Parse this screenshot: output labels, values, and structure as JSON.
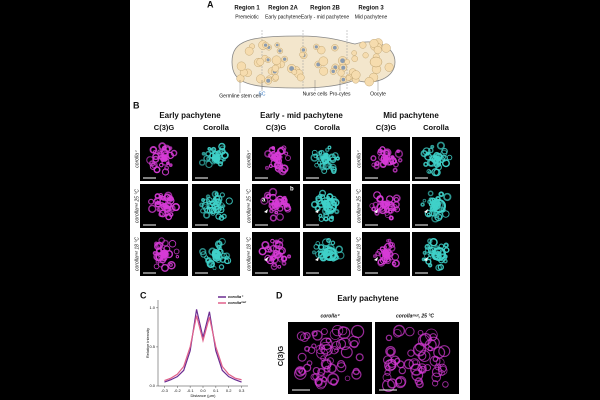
{
  "panel_labels": [
    "A",
    "B",
    "C",
    "D"
  ],
  "panel_a": {
    "regions": [
      {
        "name": "Region 1",
        "stage": "Premeiotic"
      },
      {
        "name": "Region 2A",
        "stage": "Early pachytene"
      },
      {
        "name": "Region 2B",
        "stage": "Early - mid pachytene"
      },
      {
        "name": "Region 3",
        "stage": "Mid pachytene"
      }
    ],
    "labels": [
      "Germline stem cell",
      "SC",
      "Nurse cells",
      "Pro-cytes",
      "Oocyte"
    ]
  },
  "panel_b": {
    "stages": [
      "Early pachytene",
      "Early - mid pachytene",
      "Mid pachytene"
    ],
    "channels": [
      "C(3)G",
      "Corolla"
    ],
    "genotypes": [
      "corolla⁺",
      "corollaᵐᵘᵗ 25 °C",
      "corollaᵐᵘᵗ 18 °C"
    ],
    "annotations": [
      "a",
      "b"
    ]
  },
  "panel_c": {
    "type": "line",
    "x": [
      -0.3,
      -0.25,
      -0.2,
      -0.15,
      -0.1,
      -0.05,
      0,
      0.05,
      0.1,
      0.15,
      0.2,
      0.25,
      0.3
    ],
    "series": [
      {
        "name": "corolla⁺",
        "color": "#6a2c91",
        "values": [
          0.05,
          0.08,
          0.12,
          0.2,
          0.45,
          0.98,
          0.62,
          0.95,
          0.45,
          0.2,
          0.12,
          0.08,
          0.05
        ]
      },
      {
        "name": "corollaᵐᵘᵗ",
        "color": "#e0608a",
        "values": [
          0.07,
          0.1,
          0.15,
          0.25,
          0.5,
          0.9,
          0.58,
          0.88,
          0.5,
          0.25,
          0.15,
          0.1,
          0.08
        ]
      }
    ],
    "xlim": [
      -0.35,
      0.35
    ],
    "ylim": [
      0,
      1.1
    ],
    "xticks": [
      -0.3,
      -0.2,
      -0.1,
      {
        "value": 0,
        "label": "0.0"
      },
      0.1,
      0.2,
      0.3
    ],
    "yticks": [
      {
        "value": 0,
        "label": "0.0"
      },
      0.5,
      {
        "value": 1,
        "label": "1.0"
      }
    ],
    "xlabel": "Distance (µm)",
    "ylabel": "Relative intensity"
  },
  "panel_d": {
    "title": "Early pachytene",
    "columns": [
      "corolla⁺",
      "corollaᵐᵘᵗ, 25 °C"
    ],
    "row_label": "C(3)G"
  }
}
